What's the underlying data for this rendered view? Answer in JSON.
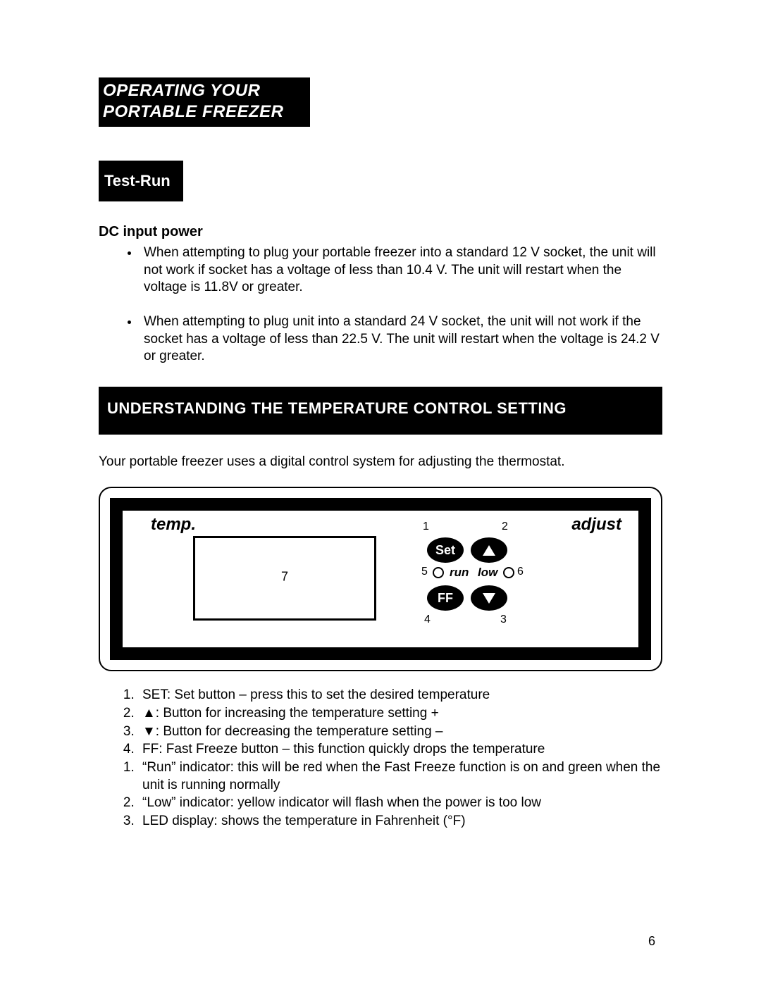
{
  "header": {
    "line1": "OPERATING YOUR",
    "line2": "PORTABLE FREEZER"
  },
  "subheader": "Test-Run",
  "dc_heading": "DC input power",
  "dc_bullets": [
    "When attempting to plug your portable freezer into a standard 12 V socket, the unit will not work if socket has a voltage of less than 10.4 V. The unit will restart when the voltage is 11.8V or greater.",
    "When attempting to plug unit into a standard 24 V socket, the unit will not work if the socket has a voltage of less than 22.5 V. The unit will restart when the voltage is 24.2 V or greater."
  ],
  "section_bar": "UNDERSTANDING THE TEMPERATURE CONTROL SETTING",
  "intro": "Your portable freezer uses a digital control system for adjusting the thermostat.",
  "panel": {
    "temp_label": "temp.",
    "adjust_label": "adjust",
    "display_marker": "7",
    "btn_set": "Set",
    "btn_ff": "FF",
    "callouts": {
      "n1": "1",
      "n2": "2",
      "n3": "3",
      "n4": "4",
      "n5": "5",
      "n6": "6"
    },
    "ind_run_label": "run",
    "ind_low_label": "low"
  },
  "list1": [
    "SET: Set button – press this to set the desired temperature",
    "▲: Button for increasing the temperature setting +",
    "▼: Button for decreasing the temperature setting –",
    "FF: Fast Freeze button – this function quickly drops the temperature"
  ],
  "list2": [
    "“Run” indicator:  this will be red when the Fast Freeze function is on and green when the unit is running normally",
    "“Low” indicator: yellow indicator will flash when the power is too low",
    "LED display: shows the temperature in Fahrenheit (°F)"
  ],
  "page_number": "6",
  "style": {
    "bg": "#ffffff",
    "text": "#000000",
    "block_bg": "#000000",
    "block_fg": "#ffffff",
    "body_fontsize": 19,
    "header_fontsize": 24
  }
}
